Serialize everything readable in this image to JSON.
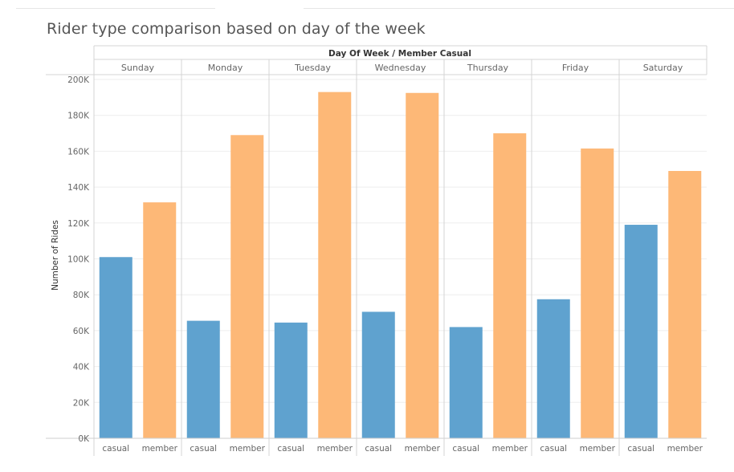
{
  "title": "Rider type comparison based on day of the week",
  "chart_data": {
    "type": "bar",
    "header": "Day Of Week / Member Casual",
    "ylabel": "Number of Rides",
    "ylim": [
      0,
      200000
    ],
    "yticks": [
      "0K",
      "20K",
      "40K",
      "60K",
      "80K",
      "100K",
      "120K",
      "140K",
      "160K",
      "180K",
      "200K"
    ],
    "ytick_values": [
      0,
      20000,
      40000,
      60000,
      80000,
      100000,
      120000,
      140000,
      160000,
      180000,
      200000
    ],
    "grid": true,
    "colors": {
      "casual": "#5fa2cf",
      "member": "#fdb877",
      "grid": "#eeeeee",
      "divider": "#d4d4d4"
    },
    "groups": [
      {
        "day": "Sunday",
        "bars": [
          {
            "label": "casual",
            "value": 101000
          },
          {
            "label": "member",
            "value": 131500
          }
        ]
      },
      {
        "day": "Monday",
        "bars": [
          {
            "label": "casual",
            "value": 65500
          },
          {
            "label": "member",
            "value": 169000
          }
        ]
      },
      {
        "day": "Tuesday",
        "bars": [
          {
            "label": "casual",
            "value": 64500
          },
          {
            "label": "member",
            "value": 193000
          }
        ]
      },
      {
        "day": "Wednesday",
        "bars": [
          {
            "label": "casual",
            "value": 70500
          },
          {
            "label": "member",
            "value": 192500
          }
        ]
      },
      {
        "day": "Thursday",
        "bars": [
          {
            "label": "casual",
            "value": 62000
          },
          {
            "label": "member",
            "value": 170000
          }
        ]
      },
      {
        "day": "Friday",
        "bars": [
          {
            "label": "casual",
            "value": 77500
          },
          {
            "label": "member",
            "value": 161500
          }
        ]
      },
      {
        "day": "Saturday",
        "bars": [
          {
            "label": "casual",
            "value": 119000
          },
          {
            "label": "member",
            "value": 149000
          }
        ]
      }
    ]
  }
}
